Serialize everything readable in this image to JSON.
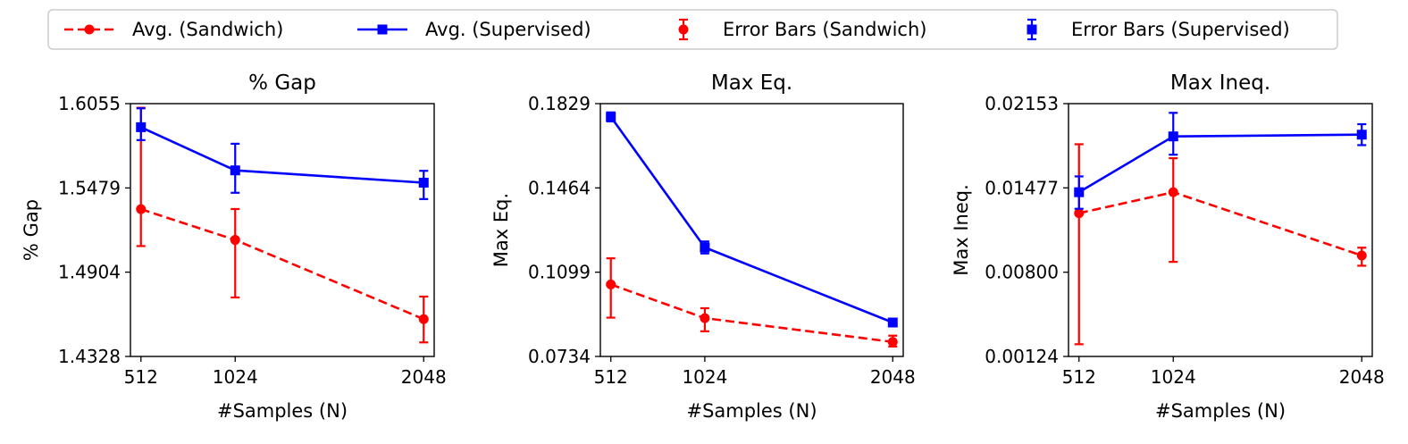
{
  "legend": {
    "position": "top-center",
    "entries": [
      {
        "label": "Avg. (Sandwich)",
        "color": "#ff0000",
        "line": "dashed",
        "marker": "circle",
        "kind": "line"
      },
      {
        "label": "Avg. (Supervised)",
        "color": "#0000ff",
        "line": "solid",
        "marker": "square",
        "kind": "line"
      },
      {
        "label": "Error Bars (Sandwich)",
        "color": "#ff0000",
        "marker": "circle",
        "kind": "errorbar"
      },
      {
        "label": "Error Bars (Supervised)",
        "color": "#0000ff",
        "marker": "square",
        "kind": "errorbar"
      }
    ]
  },
  "chart_data": [
    {
      "type": "line",
      "title": "% Gap",
      "xlabel": "#Samples (N)",
      "ylabel": "% Gap",
      "x": [
        512,
        1024,
        2048
      ],
      "x_ticks": [
        "512",
        "1024",
        "2048"
      ],
      "xlim": [
        455,
        2105
      ],
      "ylim": [
        1.4328,
        1.6055
      ],
      "y_ticks": [
        1.4328,
        1.4904,
        1.5479,
        1.6055
      ],
      "y_tick_labels": [
        "1.4328",
        "1.4904",
        "1.5479",
        "1.6055"
      ],
      "grid": false,
      "series": [
        {
          "name": "Avg. (Sandwich)",
          "color": "#ff0000",
          "line": "dashed",
          "marker": "circle",
          "values": [
            1.5334,
            1.5124,
            1.4583
          ],
          "err_low": [
            1.5082,
            1.4731,
            1.4424
          ],
          "err_high": [
            1.6027,
            1.5335,
            1.4737
          ]
        },
        {
          "name": "Avg. (Supervised)",
          "color": "#0000ff",
          "line": "solid",
          "marker": "square",
          "values": [
            1.5894,
            1.5599,
            1.5515
          ],
          "err_low": [
            1.5806,
            1.5446,
            1.5403
          ],
          "err_high": [
            1.6023,
            1.5781,
            1.5596
          ]
        }
      ]
    },
    {
      "type": "line",
      "title": "Max Eq.",
      "xlabel": "#Samples (N)",
      "ylabel": "Max Eq.",
      "x": [
        512,
        1024,
        2048
      ],
      "x_ticks": [
        "512",
        "1024",
        "2048"
      ],
      "xlim": [
        455,
        2105
      ],
      "ylim": [
        0.0734,
        0.1829
      ],
      "y_ticks": [
        0.0734,
        0.1099,
        0.1464,
        0.1829
      ],
      "y_tick_labels": [
        "0.0734",
        "0.1099",
        "0.1464",
        "0.1829"
      ],
      "grid": false,
      "series": [
        {
          "name": "Avg. (Sandwich)",
          "color": "#ff0000",
          "line": "dashed",
          "marker": "circle",
          "values": [
            0.1046,
            0.09,
            0.0797
          ],
          "err_low": [
            0.0902,
            0.0843,
            0.0777
          ],
          "err_high": [
            0.1159,
            0.0943,
            0.0824
          ]
        },
        {
          "name": "Avg. (Supervised)",
          "color": "#0000ff",
          "line": "solid",
          "marker": "square",
          "values": [
            0.1772,
            0.1206,
            0.0881
          ],
          "err_low": [
            0.1752,
            0.118,
            0.087
          ],
          "err_high": [
            0.1791,
            0.1232,
            0.0893
          ]
        }
      ]
    },
    {
      "type": "line",
      "title": "Max Ineq.",
      "xlabel": "#Samples (N)",
      "ylabel": "Max Ineq.",
      "x": [
        512,
        1024,
        2048
      ],
      "x_ticks": [
        "512",
        "1024",
        "2048"
      ],
      "xlim": [
        455,
        2105
      ],
      "ylim": [
        0.00124,
        0.02153
      ],
      "y_ticks": [
        0.00124,
        0.008,
        0.01477,
        0.02153
      ],
      "y_tick_labels": [
        "0.00124",
        "0.00800",
        "0.01477",
        "0.02153"
      ],
      "grid": false,
      "series": [
        {
          "name": "Avg. (Sandwich)",
          "color": "#ff0000",
          "line": "dashed",
          "marker": "circle",
          "values": [
            0.01274,
            0.01442,
            0.00934
          ],
          "err_low": [
            0.00222,
            0.00883,
            0.00852
          ],
          "err_high": [
            0.01827,
            0.01715,
            0.00997
          ]
        },
        {
          "name": "Avg. (Supervised)",
          "color": "#0000ff",
          "line": "solid",
          "marker": "square",
          "values": [
            0.01442,
            0.0189,
            0.01904
          ],
          "err_low": [
            0.01309,
            0.01743,
            0.0182
          ],
          "err_high": [
            0.01569,
            0.02079,
            0.01988
          ]
        }
      ]
    }
  ]
}
